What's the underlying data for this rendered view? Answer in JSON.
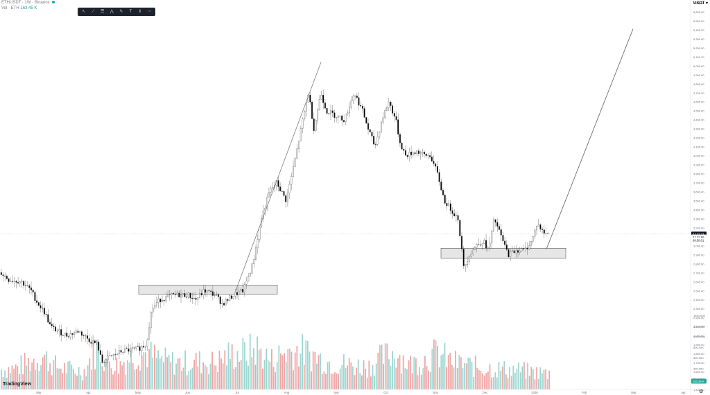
{
  "header": {
    "symbol": "ETHUSDT · 1W · Binance",
    "vol_label": "Vol · ETH",
    "vol_value": "163.45 K"
  },
  "toolbar": {
    "tools": [
      {
        "name": "cursor-tool",
        "glyph": "↖"
      },
      {
        "name": "line-tool",
        "glyph": "⟋"
      },
      {
        "name": "fib-tool",
        "glyph": "☰"
      },
      {
        "name": "pattern-tool",
        "glyph": "⋀"
      },
      {
        "name": "brush-tool",
        "glyph": "✎"
      },
      {
        "name": "text-tool",
        "glyph": "T"
      },
      {
        "name": "measure-tool",
        "glyph": "⇕"
      },
      {
        "name": "more-tool",
        "glyph": "⋯"
      }
    ]
  },
  "axis_currency": "USDT",
  "watermark": "TradingView",
  "colors": {
    "up": "#ffffff",
    "down": "#000000",
    "wick": "#555555",
    "vol_up": "#9fd6d0",
    "vol_down": "#f0a6a6",
    "box": "#e6e6e6",
    "badge": "#26a69a"
  },
  "chart_data": {
    "type": "candlestick",
    "symbol": "ETHUSDT",
    "interval": "1W",
    "x_ticks": [
      "Mar",
      "Apr",
      "May",
      "Jun",
      "Jul",
      "Aug",
      "Sep",
      "Oct",
      "Nov",
      "Dec",
      "2026",
      "Feb",
      "Mar",
      "Apr"
    ],
    "y_axis": {
      "min": 1400,
      "max": 5700,
      "unit": "USDT"
    },
    "path": [
      [
        0,
        2700
      ],
      [
        12,
        2620
      ],
      [
        30,
        2600
      ],
      [
        44,
        2500
      ],
      [
        52,
        2380
      ],
      [
        64,
        2250
      ],
      [
        72,
        2100
      ],
      [
        82,
        2050
      ],
      [
        96,
        2000
      ],
      [
        112,
        2050
      ],
      [
        128,
        1950
      ],
      [
        140,
        1900
      ],
      [
        146,
        1700
      ],
      [
        156,
        1750
      ],
      [
        176,
        1830
      ],
      [
        198,
        1850
      ],
      [
        210,
        1900
      ],
      [
        218,
        2300
      ],
      [
        230,
        2400
      ],
      [
        250,
        2450
      ],
      [
        270,
        2450
      ],
      [
        282,
        2400
      ],
      [
        294,
        2500
      ],
      [
        310,
        2450
      ],
      [
        320,
        2350
      ],
      [
        336,
        2450
      ],
      [
        350,
        2500
      ],
      [
        364,
        2800
      ],
      [
        376,
        3300
      ],
      [
        388,
        3600
      ],
      [
        398,
        3700
      ],
      [
        412,
        3500
      ],
      [
        426,
        4000
      ],
      [
        436,
        4400
      ],
      [
        444,
        4700
      ],
      [
        452,
        4300
      ],
      [
        462,
        4700
      ],
      [
        470,
        4500
      ],
      [
        482,
        4450
      ],
      [
        496,
        4400
      ],
      [
        510,
        4700
      ],
      [
        522,
        4500
      ],
      [
        530,
        4300
      ],
      [
        540,
        4100
      ],
      [
        550,
        4400
      ],
      [
        560,
        4600
      ],
      [
        570,
        4400
      ],
      [
        576,
        4150
      ],
      [
        584,
        4000
      ],
      [
        600,
        4050
      ],
      [
        612,
        4000
      ],
      [
        620,
        4000
      ],
      [
        630,
        3800
      ],
      [
        640,
        3500
      ],
      [
        650,
        3400
      ],
      [
        660,
        3300
      ],
      [
        668,
        2750
      ],
      [
        676,
        2900
      ],
      [
        686,
        3000
      ],
      [
        696,
        3050
      ],
      [
        704,
        2950
      ],
      [
        712,
        3300
      ],
      [
        722,
        3100
      ],
      [
        732,
        2900
      ],
      [
        744,
        2950
      ],
      [
        756,
        2950
      ],
      [
        766,
        3050
      ],
      [
        774,
        3250
      ],
      [
        782,
        3150
      ],
      [
        790,
        3130
      ]
    ],
    "volume_scale_max": 1400,
    "volume_profile": [
      [
        0,
        420
      ],
      [
        20,
        440
      ],
      [
        40,
        560
      ],
      [
        60,
        700
      ],
      [
        80,
        480
      ],
      [
        100,
        420
      ],
      [
        120,
        380
      ],
      [
        140,
        900
      ],
      [
        150,
        640
      ],
      [
        170,
        500
      ],
      [
        190,
        720
      ],
      [
        210,
        760
      ],
      [
        230,
        620
      ],
      [
        250,
        560
      ],
      [
        270,
        560
      ],
      [
        290,
        580
      ],
      [
        310,
        560
      ],
      [
        330,
        720
      ],
      [
        350,
        760
      ],
      [
        370,
        840
      ],
      [
        390,
        600
      ],
      [
        410,
        780
      ],
      [
        430,
        820
      ],
      [
        450,
        720
      ],
      [
        470,
        580
      ],
      [
        490,
        540
      ],
      [
        510,
        500
      ],
      [
        530,
        480
      ],
      [
        550,
        660
      ],
      [
        570,
        780
      ],
      [
        590,
        520
      ],
      [
        610,
        620
      ],
      [
        630,
        760
      ],
      [
        650,
        580
      ],
      [
        670,
        520
      ],
      [
        690,
        460
      ],
      [
        710,
        440
      ],
      [
        730,
        420
      ],
      [
        750,
        400
      ],
      [
        770,
        360
      ],
      [
        790,
        340
      ]
    ],
    "volume_ticks": [
      200,
      400,
      600,
      800,
      1000,
      1200,
      1400
    ],
    "current_price": "3,127.72",
    "current_price_value": 3128,
    "price_label_2": "3,122.86",
    "price_label_2_value": 3095,
    "price_label_3": "98:58:01",
    "price_label_3_value": 3060,
    "volume_badge": "163.45 K",
    "annotations": {
      "support_box_1": {
        "t0": 200,
        "t1": 400,
        "price_top": 2560,
        "price_bottom": 2460
      },
      "support_box_2": {
        "t0": 636,
        "t1": 816,
        "price_top": 2970,
        "price_bottom": 2860
      },
      "trend_line_1": {
        "t0": 340,
        "p0": 2500,
        "t1": 463,
        "p1": 5040
      },
      "projection_line": {
        "t0": 788,
        "p0": 2960,
        "t1": 913,
        "p1": 5410
      }
    }
  }
}
